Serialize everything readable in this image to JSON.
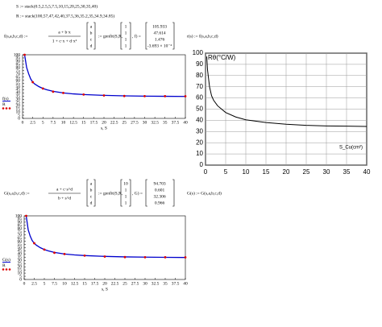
{
  "worksheet": {
    "s_def": "S := stack(0.5,2.5,5,7.5,10,15,20,25,30,35,40)",
    "r_def": "R := stack(100,57,47,42,40,37.5,36,35.2,35,34.9,34.85)",
    "fit1": {
      "fname": "f(s,a,b,c,d) :=",
      "num": "a + b·x",
      "den": "1 + c·x + d·x²",
      "params": [
        "a",
        "b",
        "c",
        "d"
      ],
      "genfit": ":= genfit(S,R,",
      "guess": [
        "1",
        "1",
        "1",
        "1"
      ],
      "tail": ", f) =",
      "results": [
        "105.933",
        "47.614",
        "1.476",
        "-3.693 × 10⁻⁴"
      ],
      "alias": "r(s) := f(s,a,b,c,d)"
    },
    "fit2": {
      "fname": "G(s,a,b,c,d) :=",
      "num": "a + c·s^d",
      "den": "b + s^d",
      "params": [
        "a",
        "b",
        "c",
        "d"
      ],
      "genfit": ":= genfit(S,R,",
      "guess": [
        "10",
        "1",
        "1",
        "1"
      ],
      "tail": ", G) =",
      "results": [
        "94.703",
        "0.601",
        "32.306",
        "0.966"
      ],
      "alias": "G(s) := G(s,a,b,c,d)"
    }
  },
  "chart_data": [
    {
      "type": "line",
      "x_label": "s, S",
      "xlim": [
        0,
        40
      ],
      "ylim": [
        0,
        100
      ],
      "xticks": [
        0,
        2.5,
        5,
        7.5,
        10,
        12.5,
        15,
        17.5,
        20,
        22.5,
        25,
        27.5,
        30,
        32.5,
        35,
        37.5,
        40
      ],
      "yticks": [
        0,
        5,
        10,
        15,
        20,
        25,
        30,
        35,
        40,
        45,
        50,
        55,
        60,
        65,
        70,
        75,
        80,
        85,
        90,
        95,
        100
      ],
      "grid": false,
      "legend": "left-outside",
      "series": [
        {
          "name": "f(s)",
          "color": "#0000cc",
          "style": "line",
          "x": [
            0.5,
            1,
            1.5,
            2,
            2.5,
            3,
            4,
            5,
            6,
            7.5,
            10,
            12.5,
            15,
            20,
            25,
            30,
            35,
            40
          ],
          "values": [
            100,
            80,
            70,
            62,
            57,
            54,
            50,
            47,
            45,
            42.5,
            40,
            38.5,
            37.5,
            36.2,
            35.4,
            35,
            34.7,
            34.5
          ]
        },
        {
          "name": "R",
          "color": "#dd0000",
          "style": "markers",
          "x": [
            0.5,
            2.5,
            5,
            7.5,
            10,
            15,
            20,
            25,
            30,
            35,
            40
          ],
          "values": [
            100,
            57,
            47,
            42,
            40,
            37.5,
            36,
            35.2,
            35,
            34.9,
            34.85
          ]
        }
      ]
    },
    {
      "type": "line",
      "title": "Rθ(°C/W)",
      "x_label": "S_Cu(cm²)",
      "xlim": [
        0,
        40
      ],
      "ylim": [
        0,
        100
      ],
      "xticks": [
        0,
        5,
        10,
        15,
        20,
        25,
        30,
        35,
        40
      ],
      "yticks": [
        0,
        10,
        20,
        30,
        40,
        50,
        60,
        70,
        80,
        90,
        100
      ],
      "grid": true,
      "series": [
        {
          "color": "#000000",
          "style": "line",
          "x": [
            0.3,
            0.5,
            1,
            1.5,
            2,
            3,
            4,
            5,
            7.5,
            10,
            15,
            20,
            25,
            30,
            35,
            40
          ],
          "values": [
            97,
            85,
            70,
            62,
            58,
            53,
            50,
            47,
            43,
            40.5,
            38,
            36.5,
            35.5,
            35,
            34.8,
            34.5
          ]
        }
      ]
    },
    {
      "type": "line",
      "x_label": "s, S",
      "xlim": [
        0,
        40
      ],
      "ylim": [
        0,
        100
      ],
      "xticks": [
        0,
        2.5,
        5,
        7.5,
        10,
        12.5,
        15,
        17.5,
        20,
        22.5,
        25,
        27.5,
        30,
        32.5,
        35,
        37.5,
        40
      ],
      "yticks": [
        0,
        5,
        10,
        15,
        20,
        25,
        30,
        35,
        40,
        45,
        50,
        55,
        60,
        65,
        70,
        75,
        80,
        85,
        90,
        95,
        100
      ],
      "grid": false,
      "legend": "left-outside",
      "series": [
        {
          "name": "G(s)",
          "color": "#0000cc",
          "style": "line",
          "x": [
            0.5,
            1,
            1.5,
            2,
            2.5,
            3,
            4,
            5,
            6,
            7.5,
            10,
            12.5,
            15,
            20,
            25,
            30,
            35,
            40
          ],
          "values": [
            100,
            78,
            68,
            61,
            57,
            54,
            50,
            47,
            45,
            42.5,
            40,
            38.6,
            37.6,
            36.3,
            35.5,
            35.1,
            34.8,
            34.6
          ]
        },
        {
          "name": "R",
          "color": "#dd0000",
          "style": "markers",
          "x": [
            0.5,
            2.5,
            5,
            7.5,
            10,
            15,
            20,
            25,
            30,
            35,
            40
          ],
          "values": [
            100,
            57,
            47,
            42,
            40,
            37.5,
            36,
            35.2,
            35,
            34.9,
            34.85
          ]
        }
      ]
    }
  ]
}
